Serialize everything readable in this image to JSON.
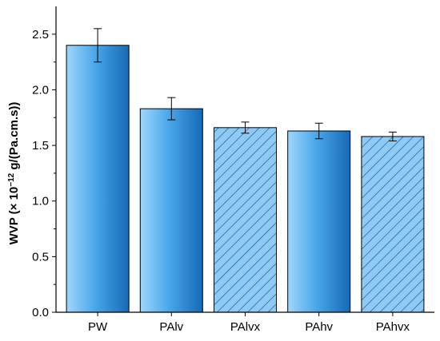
{
  "chart_data": {
    "type": "bar",
    "title": "",
    "xlabel": "",
    "ylabel_main": "WVP (× 10",
    "ylabel_exp": "−12",
    "ylabel_unit": " g/(Pa.cm.s))",
    "categories": [
      "PW",
      "PAlv",
      "PAlvx",
      "PAhv",
      "PAhvx"
    ],
    "values": [
      2.4,
      1.83,
      1.66,
      1.63,
      1.58
    ],
    "errors": [
      0.15,
      0.1,
      0.05,
      0.07,
      0.04
    ],
    "hatched": [
      false,
      false,
      true,
      false,
      true
    ],
    "ylim": [
      0,
      2.75
    ],
    "yticks": [
      0.0,
      0.5,
      1.0,
      1.5,
      2.0,
      2.5
    ],
    "ytick_labels": [
      "0.0",
      "0.5",
      "1.0",
      "1.5",
      "2.0",
      "2.5"
    ],
    "grid": false,
    "colors": {
      "bar_light": "#9fd6fb",
      "bar_mid": "#4aa8ea",
      "bar_dark": "#1669b6",
      "hatch_fill": "#8ecbf4",
      "hatch_line": "#1d4e86",
      "axis": "#000000"
    }
  }
}
